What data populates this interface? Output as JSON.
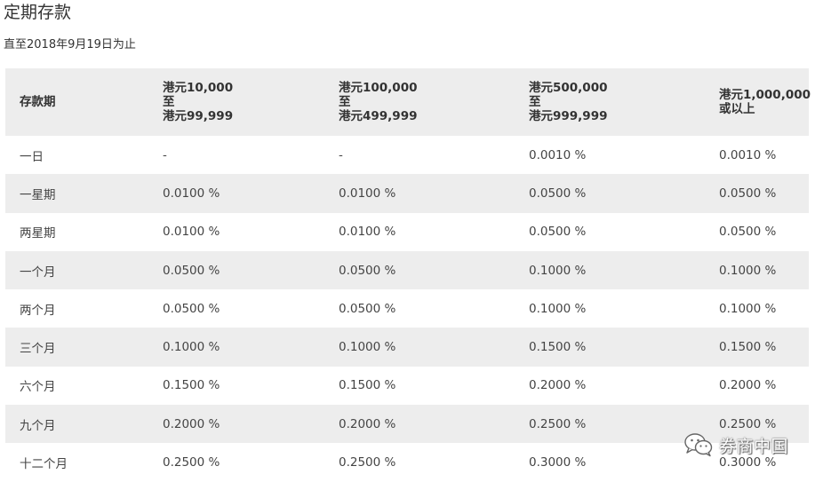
{
  "page": {
    "title": "定期存款",
    "as_of": "直至2018年9月19日为止"
  },
  "table": {
    "headers": [
      {
        "lines": [
          "存款期"
        ]
      },
      {
        "lines": [
          "港元10,000",
          "至",
          "港元99,999"
        ]
      },
      {
        "lines": [
          "港元100,000",
          "至",
          "港元499,999"
        ]
      },
      {
        "lines": [
          "港元500,000",
          "至",
          "港元999,999"
        ]
      },
      {
        "lines": [
          "港元1,000,000",
          "或以上"
        ]
      }
    ],
    "rows": [
      [
        "一日",
        "-",
        "-",
        "0.0010 %",
        "0.0010 %"
      ],
      [
        "一星期",
        "0.0100 %",
        "0.0100 %",
        "0.0500 %",
        "0.0500 %"
      ],
      [
        "两星期",
        "0.0100 %",
        "0.0100 %",
        "0.0500 %",
        "0.0500 %"
      ],
      [
        "一个月",
        "0.0500 %",
        "0.0500 %",
        "0.1000 %",
        "0.1000 %"
      ],
      [
        "两个月",
        "0.0500 %",
        "0.0500 %",
        "0.1000 %",
        "0.1000 %"
      ],
      [
        "三个月",
        "0.1000 %",
        "0.1000 %",
        "0.1500 %",
        "0.1500 %"
      ],
      [
        "六个月",
        "0.1500 %",
        "0.1500 %",
        "0.2000 %",
        "0.2000 %"
      ],
      [
        "九个月",
        "0.2000 %",
        "0.2000 %",
        "0.2500 %",
        "0.2500 %"
      ],
      [
        "十二个月",
        "0.2500 %",
        "0.2500 %",
        "0.3000 %",
        "0.3000 %"
      ]
    ]
  },
  "watermark": {
    "icon": "wechat-icon",
    "text": "券商中国"
  },
  "colors": {
    "header_bg": "#ededed",
    "stripe_bg": "#ededed",
    "text": "#333333"
  }
}
